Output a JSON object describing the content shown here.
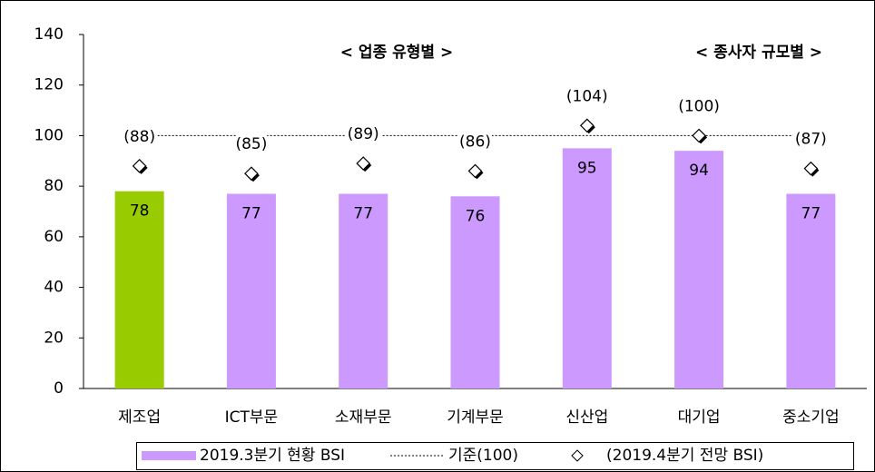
{
  "chart_data": {
    "type": "bar",
    "categories": [
      "제조업",
      "ICT부문",
      "소재부문",
      "기계부문",
      "신산업",
      "대기업",
      "중소기업"
    ],
    "series": [
      {
        "name": "2019.3분기 현황 BSI",
        "type": "bar",
        "color": "#cc99ff",
        "colors": [
          "#99cc00",
          "#cc99ff",
          "#cc99ff",
          "#cc99ff",
          "#cc99ff",
          "#cc99ff",
          "#cc99ff"
        ],
        "values": [
          78,
          77,
          77,
          76,
          95,
          94,
          77
        ]
      },
      {
        "name": "(2019.4분기 전망 BSI)",
        "type": "scatter",
        "marker": "diamond",
        "color": "#000000",
        "values": [
          88,
          85,
          89,
          86,
          104,
          100,
          87
        ],
        "value_labels": [
          "(88)",
          "(85)",
          "(89)",
          "(86)",
          "(104)",
          "(100)",
          "(87)"
        ]
      }
    ],
    "reference_line": {
      "name": "기준(100)",
      "value": 100,
      "style": "dotted"
    },
    "annotations": [
      "< 업종 유형별 >",
      "< 종사자 규모별 >"
    ],
    "ylim": [
      0,
      140
    ],
    "yticks": [
      0,
      20,
      40,
      60,
      80,
      100,
      120,
      140
    ],
    "legend": "bottom"
  }
}
